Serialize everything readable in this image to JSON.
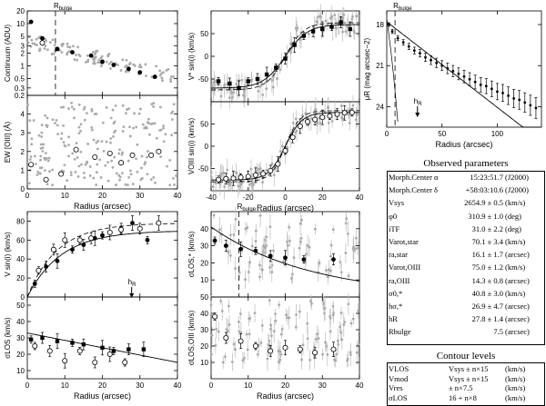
{
  "chart_data": [
    {
      "id": "continuum",
      "type": "scatter",
      "ylabel": "Continuum (ADU)",
      "xlim": [
        0,
        40
      ],
      "ylim": [
        0.2,
        20
      ],
      "yscale": "log",
      "yticks": [
        0.2,
        0.3,
        0.5,
        1,
        2,
        3,
        5,
        10,
        20
      ],
      "annotations": [
        {
          "text": "R",
          "sub": "bulge",
          "x": 7.5
        }
      ],
      "series": [
        {
          "marker": "filled",
          "x": [
            1,
            4,
            8,
            12,
            17,
            20,
            23,
            27,
            30,
            34
          ],
          "y": [
            11,
            4.5,
            2.5,
            2.1,
            1.75,
            1.25,
            1.05,
            0.85,
            0.7,
            0.55
          ]
        },
        {
          "marker": "open",
          "x": [
            4
          ],
          "y": [
            3.5
          ]
        }
      ]
    },
    {
      "id": "ew",
      "type": "scatter",
      "ylabel": "EW [OIII] (Å)",
      "xlabel": "Radius (arcsec)",
      "xlim": [
        0,
        40
      ],
      "ylim": [
        0,
        5
      ],
      "yticks": [
        0,
        1,
        2,
        3,
        4
      ],
      "xticks": [
        0,
        10,
        20,
        30,
        40
      ],
      "series": [
        {
          "marker": "open",
          "x": [
            1,
            5,
            9,
            13,
            18,
            22,
            25,
            28,
            33,
            35
          ],
          "y": [
            1.3,
            0.5,
            0.8,
            2.1,
            1.7,
            1.9,
            1.4,
            1.8,
            1.8,
            2.0
          ]
        }
      ]
    },
    {
      "id": "vstar",
      "type": "scatter",
      "ylabel": "V* sin(i) (km/s)",
      "xlim": [
        -40,
        40
      ],
      "ylim": [
        -100,
        100
      ],
      "yticks": [
        -50,
        0,
        50
      ],
      "series": [
        {
          "marker": "filled",
          "x": [
            -36,
            -30,
            -25,
            -20,
            -15,
            -10,
            -5,
            0,
            5,
            10,
            15,
            20,
            25,
            30,
            35
          ],
          "y": [
            -55,
            -60,
            -70,
            -55,
            -50,
            -40,
            -25,
            -5,
            25,
            45,
            55,
            60,
            65,
            75,
            60
          ]
        }
      ]
    },
    {
      "id": "voiii",
      "type": "scatter",
      "ylabel": "VOIII sin(i) (km/s)",
      "xlabel": "Radius (arcsec)",
      "xlim": [
        -40,
        40
      ],
      "ylim": [
        -100,
        100
      ],
      "yticks": [
        -50,
        0,
        50
      ],
      "xticks": [
        -40,
        -20,
        0,
        20,
        40
      ],
      "series": [
        {
          "marker": "open",
          "x": [
            -36,
            -32,
            -28,
            -24,
            -20,
            -16,
            -12,
            -8,
            -4,
            0,
            4,
            8,
            12,
            16,
            20,
            24,
            28,
            32,
            36
          ],
          "y": [
            -75,
            -73,
            -72,
            -70,
            -68,
            -65,
            -62,
            -55,
            -40,
            -10,
            20,
            45,
            55,
            60,
            65,
            68,
            72,
            75,
            76
          ]
        }
      ]
    },
    {
      "id": "profile",
      "type": "scatter",
      "ylabel": "μR (mag arcsec−2)",
      "xlabel": "Radius (arcsec)",
      "xlim": [
        0,
        140
      ],
      "ylim": [
        25.5,
        17
      ],
      "yticks": [
        18,
        21,
        24
      ],
      "xticks": [
        0,
        50,
        100
      ],
      "annotations": [
        {
          "text": "R",
          "sub": "bulge",
          "x": 7.5
        },
        {
          "text": "h",
          "sub": "R",
          "x": 27.8
        }
      ],
      "series": [
        {
          "marker": "filled",
          "x": [
            2,
            5,
            10,
            15,
            20,
            25,
            30,
            35,
            40,
            45,
            50,
            55,
            60,
            65,
            70,
            75,
            80,
            85,
            90,
            95,
            100,
            105,
            110,
            115,
            120,
            125,
            130,
            135
          ],
          "y": [
            18.0,
            18.5,
            19.0,
            19.3,
            19.6,
            19.9,
            20.1,
            20.4,
            20.6,
            20.8,
            21.0,
            21.2,
            21.4,
            21.6,
            21.8,
            22.0,
            22.2,
            22.4,
            22.5,
            22.7,
            22.9,
            23.0,
            23.2,
            23.4,
            23.5,
            23.7,
            23.9,
            24.1
          ]
        }
      ]
    },
    {
      "id": "vrot",
      "type": "scatter",
      "ylabel": "V sin(i) (km/s)",
      "xlim": [
        0,
        40
      ],
      "ylim": [
        0,
        90
      ],
      "yticks": [
        0,
        20,
        40,
        60,
        80
      ],
      "annotations": [
        {
          "text": "h",
          "sub": "R",
          "x": 27.8
        }
      ],
      "series": [
        {
          "marker": "filled",
          "x": [
            2,
            5,
            8,
            12,
            15,
            18,
            20,
            25,
            28,
            32
          ],
          "y": [
            14,
            32,
            38,
            50,
            55,
            62,
            65,
            72,
            78,
            60
          ]
        },
        {
          "marker": "open",
          "x": [
            3,
            7,
            10,
            14,
            17,
            22,
            25,
            30,
            35
          ],
          "y": [
            28,
            50,
            60,
            60,
            62,
            68,
            71,
            72,
            78
          ]
        }
      ]
    },
    {
      "id": "sigma",
      "type": "scatter",
      "ylabel": "σLOS (km/s)",
      "xlabel": "Radius (arcsec)",
      "xlim": [
        0,
        40
      ],
      "ylim": [
        5,
        55
      ],
      "yticks": [
        10,
        20,
        30,
        40,
        50
      ],
      "xticks": [
        0,
        10,
        20,
        30,
        40
      ],
      "series": [
        {
          "marker": "filled",
          "x": [
            1,
            4,
            8,
            12,
            15,
            20,
            23,
            27,
            31
          ],
          "y": [
            29,
            30,
            28,
            27,
            26,
            24,
            22,
            23,
            23
          ]
        },
        {
          "marker": "open",
          "x": [
            2,
            6,
            10,
            14,
            18,
            22,
            26
          ],
          "y": [
            25,
            22,
            16,
            22,
            15,
            20,
            15
          ]
        }
      ]
    },
    {
      "id": "sigma-star",
      "type": "scatter",
      "ylabel": "σLOS,* (km/s)",
      "xlim": [
        0,
        40
      ],
      "ylim": [
        0,
        50
      ],
      "yticks": [
        10,
        20,
        30,
        40
      ],
      "annotations": [
        {
          "text": "R",
          "sub": "bulge",
          "x": 7.5
        }
      ],
      "series": [
        {
          "marker": "filled",
          "x": [
            1,
            4,
            8,
            12,
            16,
            20,
            25,
            33
          ],
          "y": [
            33,
            30,
            28,
            27,
            24,
            23,
            22,
            22
          ]
        }
      ]
    },
    {
      "id": "sigma-oiii",
      "type": "scatter",
      "ylabel": "σLOS,OIII (km/s)",
      "xlabel": "Radius (arcsec)",
      "xlim": [
        0,
        40
      ],
      "ylim": [
        0,
        50
      ],
      "yticks": [
        10,
        20,
        30,
        40,
        50
      ],
      "xticks": [
        0,
        10,
        20,
        30,
        40
      ],
      "series": [
        {
          "marker": "open",
          "x": [
            1,
            4,
            8,
            12,
            16,
            20,
            24,
            28,
            33
          ],
          "y": [
            38,
            25,
            23,
            20,
            17,
            19,
            18,
            16,
            18
          ]
        }
      ]
    }
  ],
  "observed": {
    "title": "Observed parameters",
    "rows": [
      {
        "k": "Morph.Center α",
        "v": "15:23:51.7",
        "u": "(J2000)"
      },
      {
        "k": "Morph.Center δ",
        "v": "+58:03:10.6",
        "u": "(J2000)"
      },
      {
        "k": "Vsys",
        "v": "2654.9 ± 0.5",
        "u": "(km/s)"
      },
      {
        "k": "φ0",
        "v": "310.9 ± 1.0",
        "u": "(deg)"
      },
      {
        "k": "iTF",
        "v": "31.0 ± 2.2",
        "u": "(deg)"
      },
      {
        "k": "Varot,star",
        "v": "70.1 ± 3.4",
        "u": "(km/s)"
      },
      {
        "k": "ra,star",
        "v": "16.1 ± 1.7",
        "u": "(arcsec)"
      },
      {
        "k": "Varot,OIII",
        "v": "75.0 ± 1.2",
        "u": "(km/s)"
      },
      {
        "k": "ra,OIII",
        "v": "14.3 ± 0.8",
        "u": "(arcsec)"
      },
      {
        "k": "σ0,*",
        "v": "40.8 ± 3.0",
        "u": "(km/s)"
      },
      {
        "k": "hσ,*",
        "v": "26.9 ± 4.7",
        "u": "(arcsec)"
      },
      {
        "k": "hR",
        "v": "27.8 ± 1.4",
        "u": "(arcsec)"
      },
      {
        "k": "Rbulge",
        "v": "7.5",
        "u": "(arcsec)"
      }
    ]
  },
  "contour": {
    "title": "Contour levels",
    "rows": [
      {
        "k": "VLOS",
        "v": "Vsys ± n×15",
        "u": "(km/s)"
      },
      {
        "k": "Vmod",
        "v": "Vsys ± n×15",
        "u": "(km/s)"
      },
      {
        "k": "Vres",
        "v": "± n×7.5",
        "u": "(km/s)"
      },
      {
        "k": "σLOS",
        "v": "16 + n×8",
        "u": "(km/s)"
      }
    ]
  }
}
